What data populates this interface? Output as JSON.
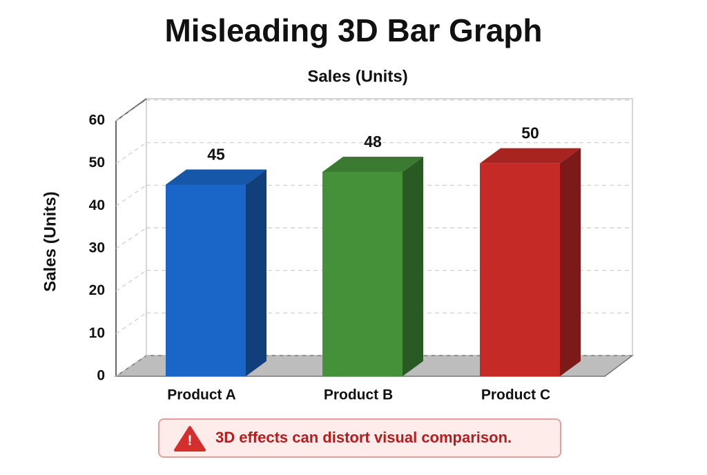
{
  "chart_data": {
    "type": "bar3d",
    "title": "Misleading 3D Bar Graph",
    "subtitle": "Sales (Units)",
    "ylabel": "Sales (Units)",
    "categories": [
      "Product A",
      "Product B",
      "Product C"
    ],
    "values": [
      45,
      48,
      50
    ],
    "colors": [
      "#1a66c8",
      "#44913a",
      "#c62a26"
    ],
    "ylim": [
      0,
      60
    ],
    "yticks": [
      0,
      10,
      20,
      30,
      40,
      50,
      60
    ],
    "grid": true,
    "annotation": "3D effects can distort visual comparison."
  }
}
